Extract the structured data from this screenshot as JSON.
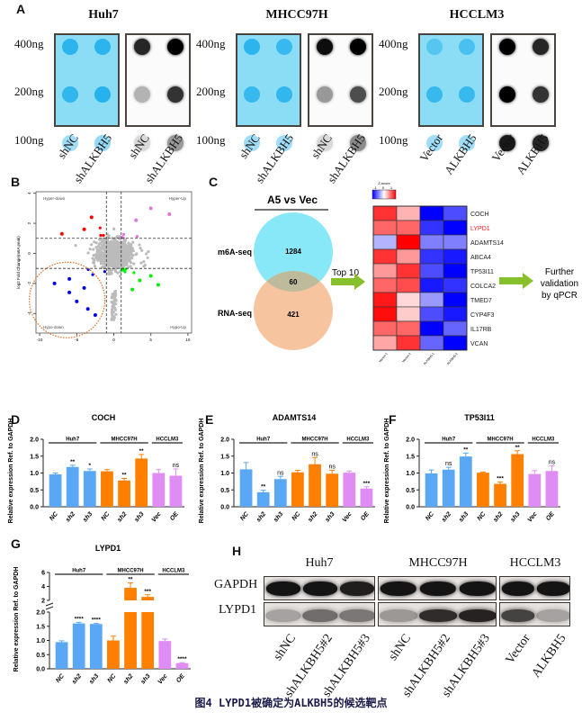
{
  "panel_letters": {
    "A": "A",
    "B": "B",
    "C": "C",
    "D": "D",
    "E": "E",
    "F": "F",
    "G": "G",
    "H": "H"
  },
  "panelA": {
    "row_labels": [
      "400ng",
      "200ng",
      "100ng"
    ],
    "cell_lines": [
      {
        "name": "Huh7",
        "lanes": [
          "shNC",
          "shALKBH5"
        ],
        "blue_intensity": [
          [
            0.8,
            0.8
          ],
          [
            0.75,
            0.85
          ],
          [
            0.4,
            0.45
          ]
        ],
        "dot_intensity": [
          [
            0.85,
            1.0
          ],
          [
            0.3,
            0.8
          ],
          [
            0.15,
            0.4
          ]
        ]
      },
      {
        "name": "MHCC97H",
        "lanes": [
          "shNC",
          "shALKBH5"
        ],
        "blue_intensity": [
          [
            0.8,
            0.7
          ],
          [
            0.7,
            0.75
          ],
          [
            0.4,
            0.4
          ]
        ],
        "dot_intensity": [
          [
            0.95,
            1.0
          ],
          [
            0.4,
            0.7
          ],
          [
            0.15,
            0.45
          ]
        ]
      },
      {
        "name": "HCCLM3",
        "lanes": [
          "Vector",
          "ALKBH5"
        ],
        "blue_intensity": [
          [
            0.45,
            0.55
          ],
          [
            0.7,
            0.7
          ],
          [
            0.4,
            0.4
          ]
        ],
        "dot_intensity": [
          [
            1.0,
            0.85
          ],
          [
            1.0,
            0.8
          ],
          [
            0.9,
            0.85
          ]
        ]
      }
    ],
    "colors": {
      "stain": "#8bdcf5",
      "spot": "#1ab4ea"
    }
  },
  "panelB": {
    "chart_data": {
      "type": "scatter",
      "xlabel": "log2 Fold Change(Gene Expression)",
      "ylabel": "log2 Fold Change(m6A peak)",
      "x_ticks": [
        -10,
        -5,
        0,
        5,
        10
      ],
      "y_ticks": [
        4,
        2,
        0,
        -2,
        -4
      ],
      "xlim": [
        -10.5,
        10.5
      ],
      "ylim": [
        -5.3,
        4.1
      ],
      "threshold_lines": {
        "x": [
          -1,
          1
        ],
        "y": [
          -1,
          1
        ]
      },
      "quadrant_labels": [
        "Hyper-down",
        "Hyper-Up",
        "Hypo-down",
        "Hypo-Up"
      ],
      "colors": {
        "hyper_down": "#ff0000",
        "hyper_up": "#dd77dd",
        "hypo_down": "#0000ee",
        "hypo_up": "#00ee00",
        "ns": "#bbbbbb",
        "highlight": "#e07020"
      }
    }
  },
  "panelC": {
    "venn": {
      "title": "A5 vs Vec",
      "sets": [
        {
          "name": "m6A-seq",
          "only": "1284",
          "color": "#88e8f8"
        },
        {
          "name": "RNA-seq",
          "only": "421",
          "color": "#f7c4a0"
        }
      ],
      "overlap": "60",
      "overlap_color": "#bdbb9c"
    },
    "arrow_label": "Top 10",
    "next_step": [
      "Further",
      "validation",
      "by qPCR"
    ],
    "heatmap": {
      "legend_title": "Z-score",
      "legend_ticks": [
        "-1",
        "0",
        "1"
      ],
      "columns": [
        "Vector-1",
        "Vector-2",
        "ALKBH5-1",
        "ALKBH5-2"
      ],
      "genes": [
        "COCH",
        "LYPD1",
        "ADAMTS14",
        "ABCA4",
        "TP53I11",
        "COLCA2",
        "TMED7",
        "CYP4F3",
        "IL17RB",
        "VCAN"
      ],
      "highlight_gene": "LYPD1",
      "highlight_color": "#ff2020",
      "values": [
        [
          0.8,
          0.3,
          -1,
          -0.7
        ],
        [
          0.6,
          0.6,
          -0.8,
          -1
        ],
        [
          -0.3,
          1,
          -0.5,
          -0.5
        ],
        [
          0.8,
          0.4,
          -0.8,
          -0.9
        ],
        [
          0.4,
          0.8,
          -0.7,
          -1
        ],
        [
          0.6,
          0.7,
          -0.9,
          -0.8
        ],
        [
          0.9,
          0.15,
          -0.4,
          -1
        ],
        [
          0.95,
          0.2,
          -0.7,
          -0.9
        ],
        [
          0.6,
          0.6,
          -1,
          -0.6
        ],
        [
          0.35,
          0.8,
          -0.6,
          -1
        ]
      ]
    }
  },
  "bar_colors": {
    "Huh7": "#5aa8f5",
    "MHCC97H": "#ff8000",
    "HCCLM3": "#e08cf5"
  },
  "chart_data": [
    {
      "type": "bar",
      "title": "COCH",
      "ylabel": "Relative expression Ref. to GAPDH",
      "ylim": [
        0,
        2.0
      ],
      "y_ticks": [
        "0.0",
        "0.5",
        "1.0",
        "1.5",
        "2.0"
      ],
      "groups": [
        {
          "name": "Huh7",
          "n": 3
        },
        {
          "name": "MHCC97H",
          "n": 3
        },
        {
          "name": "HCCLM3",
          "n": 2
        }
      ],
      "categories": [
        "NC",
        "sh2",
        "sh3",
        "NC",
        "sh2",
        "sh3",
        "Vec",
        "OE"
      ],
      "values": [
        0.96,
        1.18,
        1.06,
        1.05,
        0.78,
        1.43,
        1.0,
        0.92
      ],
      "errors": [
        0.04,
        0.05,
        0.06,
        0.05,
        0.06,
        0.12,
        0.1,
        0.2
      ],
      "significance": [
        "",
        "**",
        "*",
        "",
        "**",
        "**",
        "",
        "ns"
      ]
    },
    {
      "type": "bar",
      "title": "ADAMTS14",
      "ylabel": "Relative expression Ref. to GAPDH",
      "ylim": [
        0,
        2.0
      ],
      "y_ticks": [
        "0.0",
        "0.5",
        "1.0",
        "1.5",
        "2.0"
      ],
      "groups": [
        {
          "name": "Huh7",
          "n": 3
        },
        {
          "name": "MHCC97H",
          "n": 3
        },
        {
          "name": "HCCLM3",
          "n": 2
        }
      ],
      "categories": [
        "NC",
        "sh2",
        "sh3",
        "NC",
        "sh2",
        "sh3",
        "Vec",
        "OE"
      ],
      "values": [
        1.11,
        0.43,
        0.82,
        1.02,
        1.26,
        0.98,
        1.01,
        0.54
      ],
      "errors": [
        0.2,
        0.06,
        0.08,
        0.06,
        0.2,
        0.1,
        0.05,
        0.05
      ],
      "significance": [
        "",
        "**",
        "ns",
        "",
        "ns",
        "ns",
        "",
        "***"
      ]
    },
    {
      "type": "bar",
      "title": "TP53I11",
      "ylabel": "Relative expression Ref. to GAPDH",
      "ylim": [
        0,
        2.0
      ],
      "y_ticks": [
        "0.0",
        "0.5",
        "1.0",
        "1.5",
        "2.0"
      ],
      "groups": [
        {
          "name": "Huh7",
          "n": 3
        },
        {
          "name": "MHCC97H",
          "n": 3
        },
        {
          "name": "HCCLM3",
          "n": 2
        }
      ],
      "categories": [
        "NC",
        "sh2",
        "sh3",
        "NC",
        "sh2",
        "sh3",
        "Vec",
        "OE"
      ],
      "values": [
        0.99,
        1.1,
        1.49,
        1.01,
        0.68,
        1.56,
        0.97,
        1.06
      ],
      "errors": [
        0.1,
        0.07,
        0.1,
        0.02,
        0.05,
        0.1,
        0.1,
        0.15
      ],
      "significance": [
        "",
        "ns",
        "**",
        "",
        "***",
        "**",
        "",
        "ns"
      ]
    },
    {
      "type": "bar",
      "title": "LYPD1",
      "ylabel": "Relative expression Ref. to GAPDH",
      "ylim": [
        0,
        6
      ],
      "axis_break": [
        2.0,
        2
      ],
      "y_ticks": [
        "0.0",
        "0.5",
        "1.0",
        "1.5",
        "2.0"
      ],
      "y_ticks_upper": [
        "2",
        "4",
        "6"
      ],
      "groups": [
        {
          "name": "Huh7",
          "n": 3
        },
        {
          "name": "MHCC97H",
          "n": 3
        },
        {
          "name": "HCCLM3",
          "n": 2
        }
      ],
      "categories": [
        "NC",
        "sh2",
        "sh3",
        "NC",
        "sh2",
        "sh3",
        "Vec",
        "OE"
      ],
      "values": [
        0.94,
        1.6,
        1.58,
        1.0,
        3.8,
        2.5,
        0.98,
        0.2
      ],
      "errors": [
        0.05,
        0.04,
        0.02,
        0.15,
        0.7,
        0.3,
        0.07,
        0.02
      ],
      "significance": [
        "",
        "****",
        "****",
        "",
        "**",
        "***",
        "",
        "****"
      ]
    }
  ],
  "panelH": {
    "row_labels": [
      "GAPDH",
      "LYPD1"
    ],
    "cell_lines": [
      {
        "name": "Huh7",
        "lanes": [
          "shNC",
          "shALKBH5#2",
          "shALKBH5#3"
        ],
        "gapdh": [
          0.95,
          0.95,
          0.9
        ],
        "lypd1": [
          0.3,
          0.55,
          0.5
        ]
      },
      {
        "name": "MHCC97H",
        "lanes": [
          "shNC",
          "shALKBH5#2",
          "shALKBH5#3"
        ],
        "gapdh": [
          0.95,
          0.95,
          0.95
        ],
        "lypd1": [
          0.35,
          0.85,
          0.9
        ]
      },
      {
        "name": "HCCLM3",
        "lanes": [
          "Vector",
          "ALKBH5"
        ],
        "gapdh": [
          0.95,
          0.95
        ],
        "lypd1": [
          0.75,
          0.3
        ]
      }
    ]
  },
  "caption": "图4 LYPD1被确定为ALKBH5的候选靶点"
}
